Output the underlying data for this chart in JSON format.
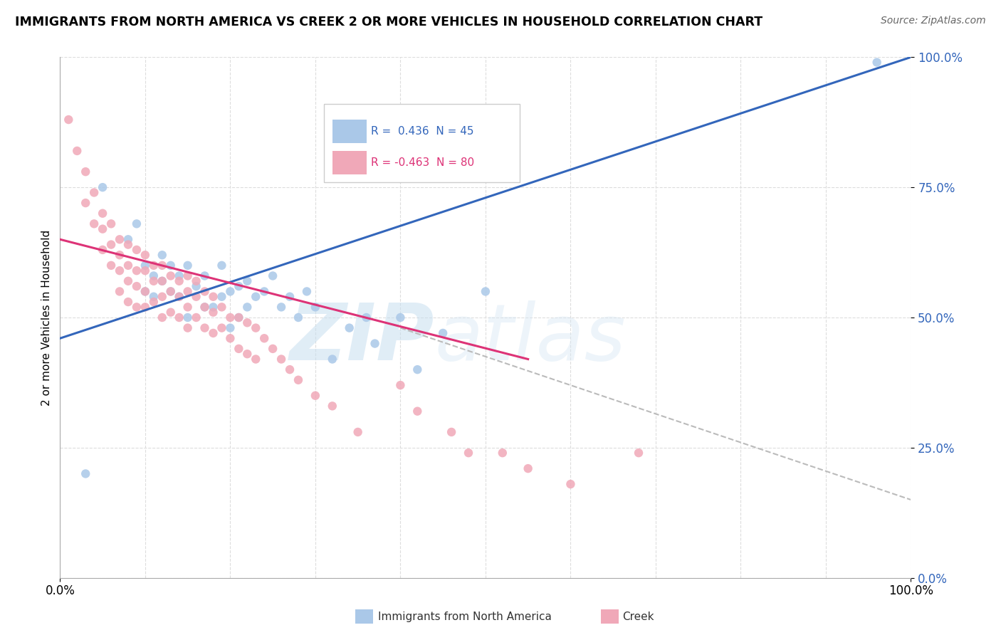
{
  "title": "IMMIGRANTS FROM NORTH AMERICA VS CREEK 2 OR MORE VEHICLES IN HOUSEHOLD CORRELATION CHART",
  "source": "Source: ZipAtlas.com",
  "ylabel": "2 or more Vehicles in Household",
  "xlim": [
    0,
    100
  ],
  "ylim": [
    0,
    100
  ],
  "xticks": [
    0,
    10,
    20,
    30,
    40,
    50,
    60,
    70,
    80,
    90,
    100
  ],
  "yticks": [
    0,
    25,
    50,
    75,
    100
  ],
  "ytick_labels": [
    "0.0%",
    "25.0%",
    "50.0%",
    "75.0%",
    "100.0%"
  ],
  "watermark_zip": "ZIP",
  "watermark_atlas": "atlas",
  "background_color": "#ffffff",
  "grid_color": "#dddddd",
  "blue_scatter_color": "#aac8e8",
  "pink_scatter_color": "#f0a8b8",
  "blue_line_color": "#3366bb",
  "pink_line_color": "#dd3377",
  "dashed_line_color": "#bbbbbb",
  "blue_scatter_x": [
    3,
    5,
    8,
    9,
    10,
    10,
    11,
    11,
    12,
    12,
    13,
    13,
    14,
    14,
    15,
    15,
    16,
    17,
    17,
    18,
    19,
    19,
    20,
    20,
    21,
    21,
    22,
    22,
    23,
    24,
    25,
    26,
    27,
    28,
    29,
    30,
    32,
    34,
    36,
    37,
    40,
    42,
    45,
    50,
    96
  ],
  "blue_scatter_y": [
    20,
    75,
    65,
    68,
    60,
    55,
    58,
    54,
    62,
    57,
    60,
    55,
    58,
    54,
    60,
    50,
    56,
    58,
    52,
    52,
    60,
    54,
    55,
    48,
    56,
    50,
    57,
    52,
    54,
    55,
    58,
    52,
    54,
    50,
    55,
    52,
    42,
    48,
    50,
    45,
    50,
    40,
    47,
    55,
    99
  ],
  "pink_scatter_x": [
    1,
    2,
    3,
    3,
    4,
    4,
    5,
    5,
    5,
    6,
    6,
    6,
    7,
    7,
    7,
    7,
    8,
    8,
    8,
    8,
    9,
    9,
    9,
    9,
    10,
    10,
    10,
    10,
    11,
    11,
    11,
    12,
    12,
    12,
    12,
    13,
    13,
    13,
    14,
    14,
    14,
    15,
    15,
    15,
    15,
    16,
    16,
    16,
    17,
    17,
    17,
    18,
    18,
    18,
    19,
    19,
    20,
    20,
    21,
    21,
    22,
    22,
    23,
    23,
    24,
    25,
    26,
    27,
    28,
    30,
    32,
    35,
    40,
    42,
    46,
    48,
    52,
    55,
    60,
    68
  ],
  "pink_scatter_y": [
    88,
    82,
    78,
    72,
    74,
    68,
    70,
    67,
    63,
    68,
    64,
    60,
    65,
    62,
    59,
    55,
    64,
    60,
    57,
    53,
    63,
    59,
    56,
    52,
    62,
    59,
    55,
    52,
    60,
    57,
    53,
    60,
    57,
    54,
    50,
    58,
    55,
    51,
    57,
    54,
    50,
    58,
    55,
    52,
    48,
    57,
    54,
    50,
    55,
    52,
    48,
    54,
    51,
    47,
    52,
    48,
    50,
    46,
    50,
    44,
    49,
    43,
    48,
    42,
    46,
    44,
    42,
    40,
    38,
    35,
    33,
    28,
    37,
    32,
    28,
    24,
    24,
    21,
    18,
    24
  ],
  "blue_line": {
    "x0": 0,
    "y0": 46,
    "x1": 100,
    "y1": 100
  },
  "pink_line_solid": {
    "x0": 0,
    "y0": 65,
    "x1": 55,
    "y1": 42
  },
  "pink_line_dashed": {
    "x0": 40,
    "y0": 48,
    "x1": 100,
    "y1": 15
  }
}
